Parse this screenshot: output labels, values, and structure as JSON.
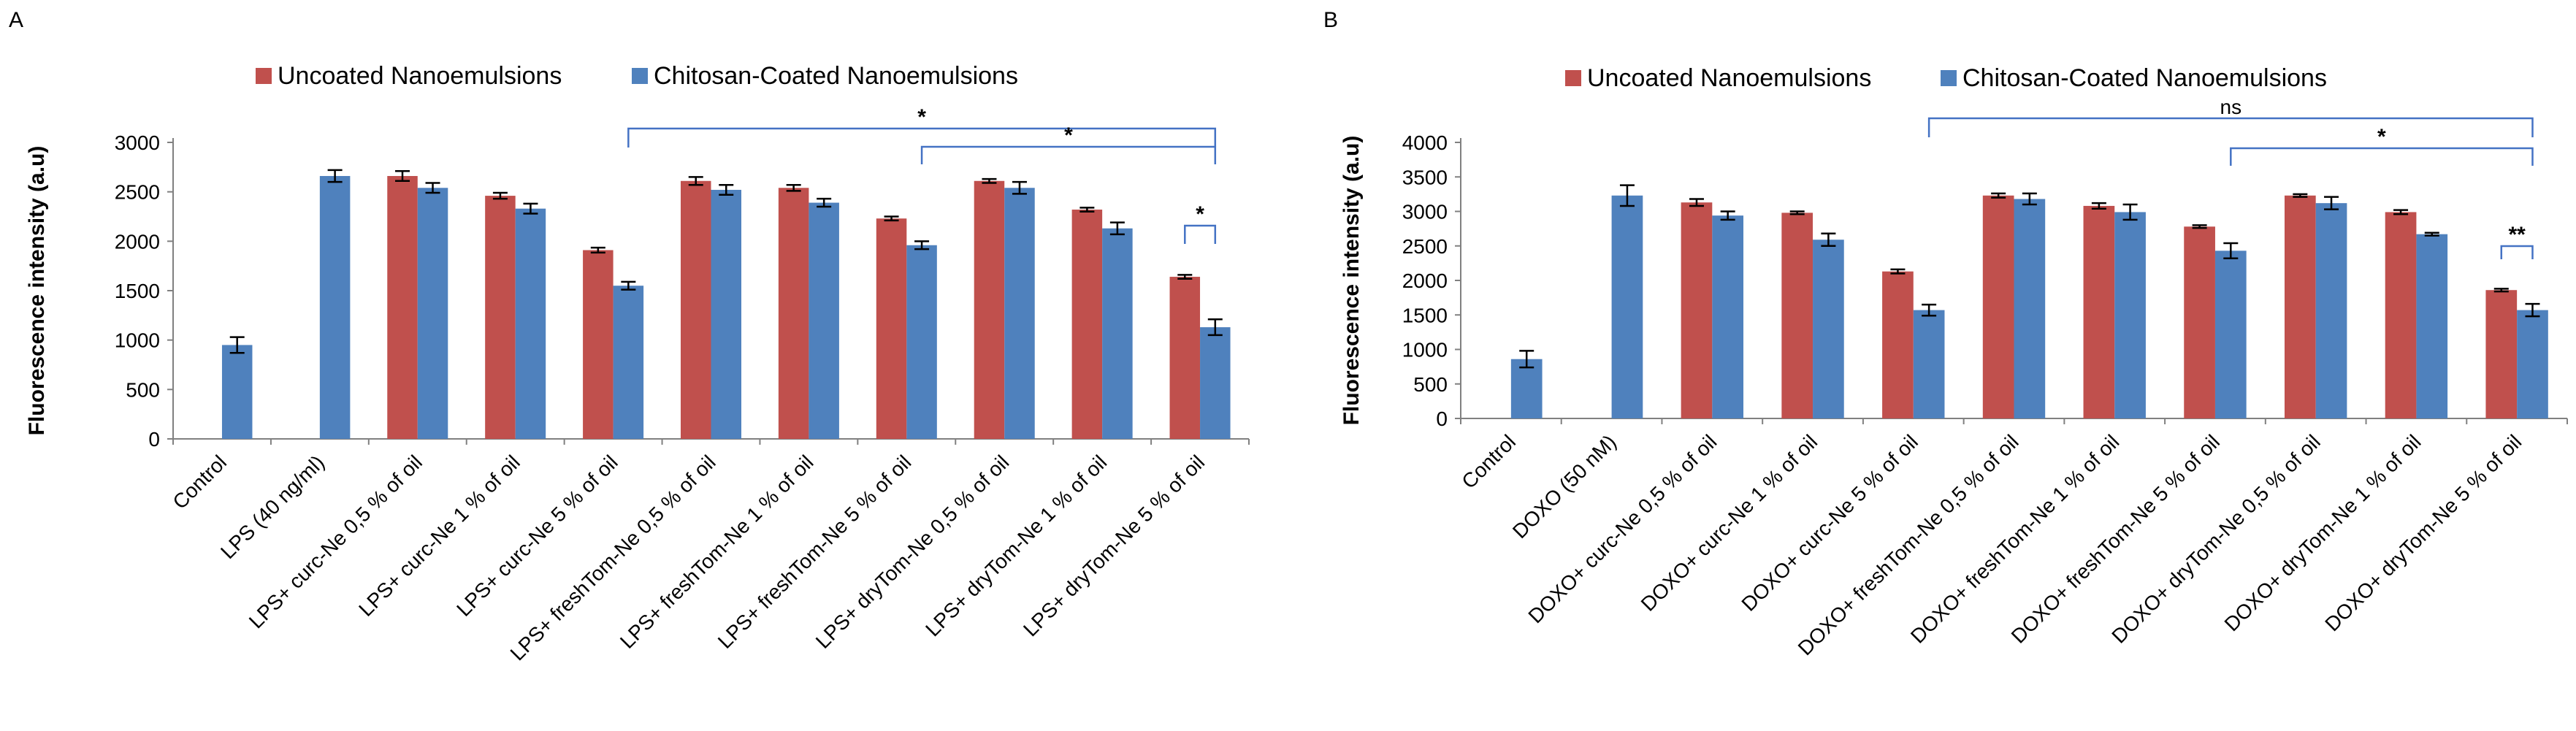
{
  "chart_data": [
    {
      "type": "bar",
      "panel_label": "A",
      "ylabel": "Fluorescence intensity (a.u)",
      "ylim": [
        0,
        3000
      ],
      "yticks": [
        0,
        500,
        1000,
        1500,
        2000,
        2500,
        3000
      ],
      "categories": [
        "Control",
        "LPS (40 ng/ml)",
        "LPS+ curc-Ne 0,5 % of oil",
        "LPS+ curc-Ne 1 % of oil",
        "LPS+ curc-Ne 5 % of oil",
        "LPS+ freshTom-Ne 0,5 % of oil",
        "LPS+ freshTom-Ne 1 % of oil",
        "LPS+ freshTom-Ne 5 % of oil",
        "LPS+ dryTom-Ne 0,5 % of oil",
        "LPS+ dryTom-Ne 1 % of oil",
        "LPS+ dryTom-Ne 5 % of oil"
      ],
      "series": [
        {
          "name": "Uncoated Nanoemulsions",
          "color": "#C0504D",
          "values": [
            null,
            null,
            2660,
            2460,
            1910,
            2610,
            2540,
            2230,
            2610,
            2320,
            1640
          ],
          "errors": [
            null,
            null,
            50,
            30,
            25,
            40,
            30,
            20,
            20,
            20,
            20
          ]
        },
        {
          "name": "Chitosan-Coated Nanoemulsions",
          "color": "#4F81BD",
          "values": [
            950,
            2660,
            2540,
            2330,
            1550,
            2520,
            2390,
            1960,
            2540,
            2130,
            1130
          ],
          "errors": [
            80,
            60,
            50,
            50,
            40,
            50,
            40,
            40,
            60,
            60,
            80
          ]
        }
      ],
      "brackets": [
        {
          "from_category": 4,
          "to_category": 10,
          "label": "*"
        },
        {
          "from_category": 7,
          "to_category": 10,
          "label": "*"
        },
        {
          "from_category": 10,
          "to_category": 10,
          "label": "*"
        }
      ]
    },
    {
      "type": "bar",
      "panel_label": "B",
      "ylabel": "Fluorescence intensity (a.u)",
      "ylim": [
        0,
        4000
      ],
      "yticks": [
        0,
        500,
        1000,
        1500,
        2000,
        2500,
        3000,
        3500,
        4000
      ],
      "categories": [
        "Control",
        "DOXO (50 nM)",
        "DOXO+ curc-Ne 0,5 % of oil",
        "DOXO+ curc-Ne 1 % of oil",
        "DOXO+ curc-Ne 5 % of oil",
        "DOXO+ freshTom-Ne 0,5 % of oil",
        "DOXO+ freshTom-Ne 1 % of oil",
        "DOXO+ freshTom-Ne 5 % of oil",
        "DOXO+ dryTom-Ne 0,5 % of oil",
        "DOXO+ dryTom-Ne 1 % of oil",
        "DOXO+ dryTom-Ne 5 % of oil"
      ],
      "series": [
        {
          "name": "Uncoated Nanoemulsions",
          "color": "#C0504D",
          "values": [
            null,
            null,
            3130,
            2980,
            2130,
            3230,
            3080,
            2780,
            3230,
            2990,
            1860
          ],
          "errors": [
            null,
            null,
            50,
            20,
            30,
            30,
            40,
            20,
            20,
            30,
            20
          ]
        },
        {
          "name": "Chitosan-Coated Nanoemulsions",
          "color": "#4F81BD",
          "values": [
            860,
            3230,
            2940,
            2590,
            1570,
            3180,
            2990,
            2430,
            3120,
            2670,
            1570
          ],
          "errors": [
            120,
            150,
            60,
            90,
            80,
            80,
            110,
            110,
            90,
            20,
            90
          ]
        }
      ],
      "brackets": [
        {
          "from_category": 4,
          "to_category": 10,
          "label": "ns"
        },
        {
          "from_category": 7,
          "to_category": 10,
          "label": "*"
        },
        {
          "from_category": 10,
          "to_category": 10,
          "label": "**"
        }
      ]
    }
  ]
}
